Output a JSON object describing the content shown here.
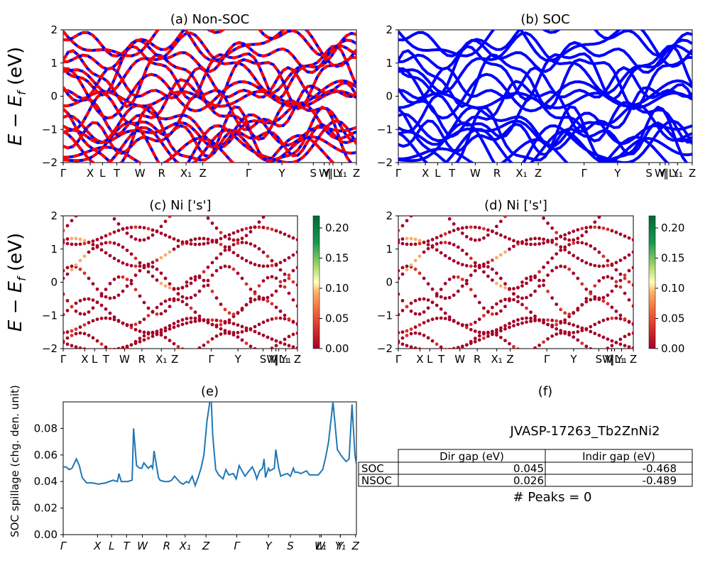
{
  "chart_data": [
    {
      "panel": "a",
      "type": "line",
      "title": "(a) Non-SOC",
      "ylabel": "E - E_f (eV)",
      "ylim": [
        -2,
        2
      ],
      "yticks": [
        "2",
        "1",
        "0",
        "-1",
        "-2"
      ],
      "xticks": [
        "Γ",
        "X",
        "L",
        "T",
        "W",
        "R",
        "X₁",
        "Z",
        "Γ",
        "Y",
        "S",
        "W",
        "|",
        "Y|L₁",
        "Y₁",
        "Z"
      ],
      "series": [
        {
          "style": "red-blue dashed",
          "color": "#ff0000",
          "values": [
            -1.75,
            -1.55,
            -1.3,
            -0.85,
            -0.3,
            0.05,
            0.55,
            1.0,
            1.6
          ]
        }
      ]
    },
    {
      "panel": "b",
      "type": "line",
      "title": "(b) SOC",
      "ylim": [
        -2,
        2
      ],
      "yticks": [
        "2",
        "1",
        "0",
        "-1",
        "-2"
      ],
      "xticks": [
        "Γ",
        "X",
        "L",
        "T",
        "W",
        "R",
        "X₁",
        "Z",
        "Γ",
        "Y",
        "S",
        "W",
        "|",
        "Y|L₁",
        "Y₁",
        "Z"
      ],
      "series": [
        {
          "color": "#0000ff",
          "values": [
            -1.8,
            -1.55,
            -1.25,
            -0.9,
            -0.35,
            0.05,
            0.55,
            1.0,
            1.6
          ]
        }
      ]
    },
    {
      "panel": "c",
      "type": "scatter",
      "title": "(c)  Ni ['s']",
      "ylabel": "E - E_f (eV)",
      "ylim": [
        -2,
        2
      ],
      "yticks": [
        "2",
        "1",
        "0",
        "-1",
        "-2"
      ],
      "xticks": [
        "Γ",
        "X",
        "L",
        "T",
        "W",
        "R",
        "X₁",
        "Z",
        "Γ",
        "Y",
        "S",
        "W",
        "|",
        "Y|L₁",
        "Y₁",
        "Z"
      ],
      "colorbar": {
        "min": 0.0,
        "max": 0.22,
        "ticks": [
          "0.00",
          "0.05",
          "0.10",
          "0.15",
          "0.20"
        ]
      }
    },
    {
      "panel": "d",
      "type": "scatter",
      "title": "(d) Ni ['s']",
      "ylim": [
        -2,
        2
      ],
      "yticks": [
        "2",
        "1",
        "0",
        "-1",
        "-2"
      ],
      "xticks": [
        "Γ",
        "X",
        "L",
        "T",
        "W",
        "R",
        "X₁",
        "Z",
        "Γ",
        "Y",
        "S",
        "W",
        "|",
        "Y|L₁",
        "Y₁",
        "Z"
      ],
      "colorbar": {
        "min": 0.0,
        "max": 0.22,
        "ticks": [
          "0.00",
          "0.05",
          "0.10",
          "0.15",
          "0.20"
        ]
      }
    },
    {
      "panel": "e",
      "type": "line",
      "title": "(e)",
      "ylabel": "SOC spillage (chg. den. unit)",
      "ylim": [
        0,
        0.1
      ],
      "yticks": [
        "0.00",
        "0.02",
        "0.04",
        "0.06",
        "0.08"
      ],
      "xticks": [
        "Γ",
        "X",
        "L",
        "T",
        "W",
        "R",
        "X₁",
        "Z",
        "Γ",
        "Y",
        "S",
        "W",
        "L₁",
        "Y",
        "Y₁",
        "Z"
      ],
      "series": [
        {
          "color": "#1f77b4",
          "x": [
            0.0,
            0.01,
            0.02,
            0.03,
            0.045,
            0.055,
            0.065,
            0.08,
            0.1,
            0.12,
            0.145,
            0.17,
            0.185,
            0.19,
            0.198,
            0.2,
            0.22,
            0.22,
            0.235,
            0.24,
            0.25,
            0.262,
            0.268,
            0.275,
            0.29,
            0.3,
            0.305,
            0.31,
            0.325,
            0.33,
            0.345,
            0.36,
            0.37,
            0.38,
            0.4,
            0.41,
            0.42,
            0.428,
            0.44,
            0.45,
            0.46,
            0.47,
            0.48,
            0.49,
            0.5,
            0.505,
            0.51,
            0.52,
            0.53,
            0.545,
            0.555,
            0.565,
            0.58,
            0.59,
            0.6,
            0.62,
            0.63,
            0.645,
            0.655,
            0.66,
            0.67,
            0.68,
            0.685,
            0.69,
            0.7,
            0.705,
            0.72,
            0.725,
            0.735,
            0.742,
            0.75,
            0.765,
            0.775,
            0.785,
            0.79,
            0.8,
            0.81,
            0.82,
            0.83,
            0.84,
            0.85,
            0.862,
            0.87,
            0.885,
            0.895,
            0.905,
            0.92,
            0.935,
            0.95,
            0.965,
            0.975,
            0.985,
            0.995,
            1.0
          ],
          "values": [
            0.051,
            0.051,
            0.049,
            0.05,
            0.057,
            0.052,
            0.043,
            0.039,
            0.039,
            0.038,
            0.039,
            0.041,
            0.04,
            0.046,
            0.04,
            0.04,
            0.04,
            0.04,
            0.041,
            0.08,
            0.052,
            0.05,
            0.05,
            0.054,
            0.05,
            0.052,
            0.05,
            0.063,
            0.043,
            0.041,
            0.04,
            0.04,
            0.041,
            0.044,
            0.039,
            0.038,
            0.04,
            0.039,
            0.044,
            0.037,
            0.043,
            0.05,
            0.06,
            0.085,
            0.1,
            0.1,
            0.075,
            0.049,
            0.045,
            0.042,
            0.049,
            0.045,
            0.046,
            0.042,
            0.052,
            0.044,
            0.047,
            0.051,
            0.046,
            0.042,
            0.048,
            0.05,
            0.057,
            0.043,
            0.05,
            0.048,
            0.05,
            0.064,
            0.05,
            0.044,
            0.045,
            0.046,
            0.044,
            0.05,
            0.047,
            0.047,
            0.046,
            0.047,
            0.048,
            0.045,
            0.045,
            0.045,
            0.045,
            0.049,
            0.058,
            0.07,
            0.1,
            0.064,
            0.059,
            0.055,
            0.057,
            0.098,
            0.06,
            0.053
          ]
        }
      ]
    },
    {
      "panel": "f",
      "type": "table",
      "title": "(f)",
      "subtitle": "JVASP-17263_Tb2ZnNi2",
      "columns": [
        "",
        "Dir gap (eV)",
        "Indir gap (eV)"
      ],
      "rows": [
        [
          "SOC",
          "0.045",
          "-0.468"
        ],
        [
          "NSOC",
          "0.026",
          "-0.489"
        ]
      ],
      "footer": "# Peaks = 0"
    }
  ]
}
